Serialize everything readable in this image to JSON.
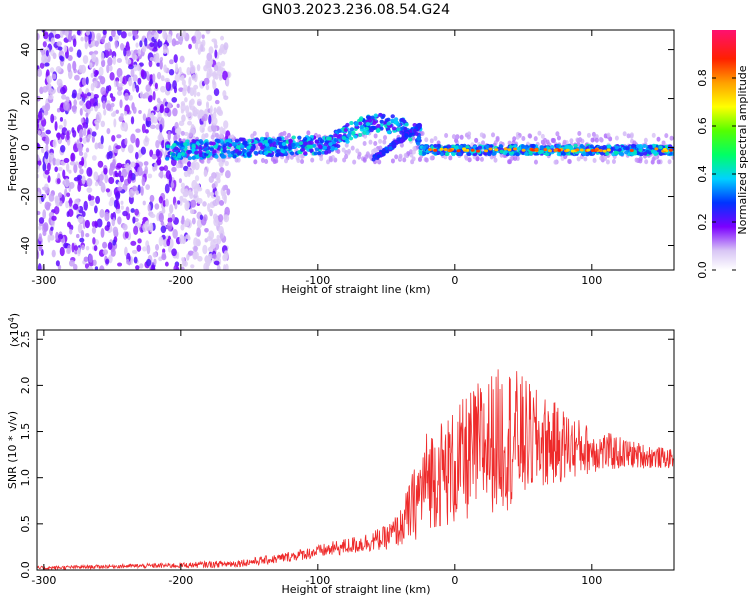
{
  "title": "GN03.2023.236.08.54.G24",
  "chart_data": [
    {
      "type": "heatmap",
      "xlabel": "Height of straight line (km)",
      "ylabel": "Frequency (Hz)",
      "xlim": [
        -305,
        160
      ],
      "ylim": [
        -50,
        48
      ],
      "xticks": [
        -300,
        -200,
        -100,
        0,
        100
      ],
      "yticks": [
        -40,
        -20,
        0,
        20,
        40
      ],
      "colorbar": {
        "label": "Normalized spectral amplitude",
        "range": [
          0,
          1
        ],
        "ticks": [
          0.0,
          0.2,
          0.4,
          0.6,
          0.8
        ]
      },
      "features": [
        {
          "name": "noise",
          "x_range": [
            -305,
            -165
          ],
          "y_range": [
            -50,
            48
          ],
          "amplitude": 0.1
        },
        {
          "name": "signal",
          "x_range": [
            -210,
            160
          ],
          "y_center": 0,
          "amplitude": 0.4
        },
        {
          "name": "bump",
          "x_range": [
            -90,
            -25
          ],
          "y_peak": 10,
          "amplitude": 0.45
        },
        {
          "name": "strong-line",
          "x_range": [
            -25,
            160
          ],
          "y_center": -1,
          "amplitude": 0.85
        }
      ]
    },
    {
      "type": "line",
      "xlabel": "Height of straight line (km)",
      "ylabel": "SNR (10 * v/v)",
      "y_multiplier": "(x10",
      "y_multiplier_exp": "4",
      "y_multiplier_close": ")",
      "xlim": [
        -305,
        160
      ],
      "ylim": [
        0,
        2.6
      ],
      "xticks": [
        -300,
        -200,
        -100,
        0,
        100
      ],
      "yticks": [
        0.0,
        0.5,
        1.0,
        1.5,
        2.0,
        2.5
      ],
      "ytick_labels": [
        "0.0",
        "0.5",
        "1.0",
        "1.5",
        "2.0",
        "2.5"
      ],
      "color": "#ee2a2a",
      "envelope": {
        "x": [
          -305,
          -250,
          -200,
          -160,
          -130,
          -100,
          -70,
          -50,
          -40,
          -30,
          -20,
          0,
          20,
          40,
          60,
          80,
          100,
          130,
          160
        ],
        "mean": [
          0.02,
          0.04,
          0.05,
          0.07,
          0.12,
          0.2,
          0.28,
          0.35,
          0.45,
          0.7,
          1.0,
          1.1,
          1.35,
          1.45,
          1.4,
          1.35,
          1.3,
          1.25,
          1.2
        ],
        "amp": [
          0.02,
          0.02,
          0.03,
          0.04,
          0.05,
          0.07,
          0.1,
          0.13,
          0.2,
          0.4,
          0.55,
          0.65,
          0.75,
          0.8,
          0.55,
          0.4,
          0.25,
          0.15,
          0.1
        ]
      }
    }
  ]
}
